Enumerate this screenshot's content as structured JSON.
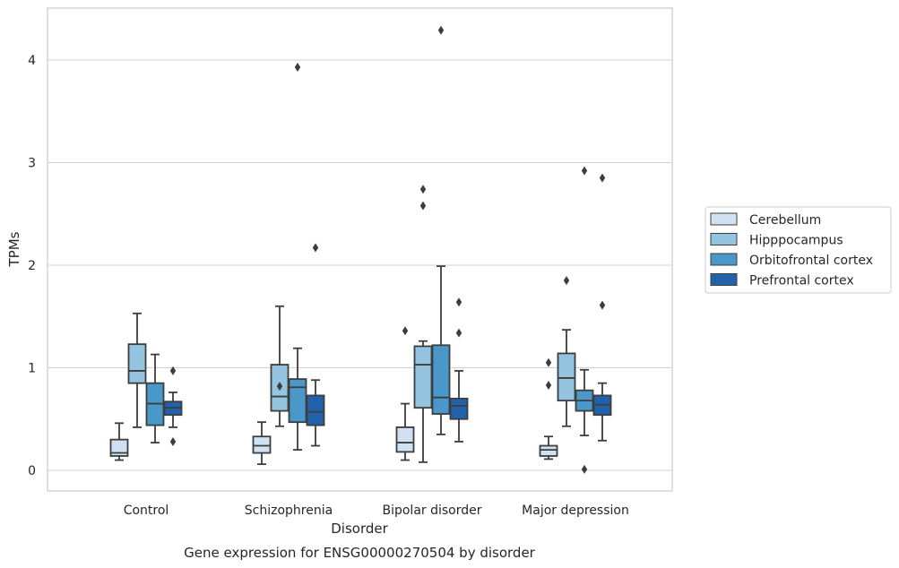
{
  "chart_data": {
    "type": "box",
    "title": "",
    "caption": "Gene expression for ENSG00000270504 by disorder",
    "xlabel": "Disorder",
    "ylabel": "TPMs",
    "categories": [
      "Control",
      "Schizophrenia",
      "Bipolar disorder",
      "Major depression"
    ],
    "y_ticks": [
      0,
      1,
      2,
      3,
      4
    ],
    "ylim": [
      -0.2,
      4.5
    ],
    "grid": "horizontal",
    "legend_position": "right",
    "series": [
      {
        "name": "Cerebellum",
        "color": "#d0e1f2",
        "boxes": [
          {
            "whisker_low": 0.1,
            "q1": 0.14,
            "median": 0.17,
            "q3": 0.3,
            "whisker_high": 0.46,
            "outliers": []
          },
          {
            "whisker_low": 0.06,
            "q1": 0.17,
            "median": 0.24,
            "q3": 0.33,
            "whisker_high": 0.47,
            "outliers": []
          },
          {
            "whisker_low": 0.1,
            "q1": 0.18,
            "median": 0.27,
            "q3": 0.42,
            "whisker_high": 0.65,
            "outliers": [
              1.36
            ]
          },
          {
            "whisker_low": 0.11,
            "q1": 0.14,
            "median": 0.2,
            "q3": 0.24,
            "whisker_high": 0.33,
            "outliers": [
              1.05,
              0.83
            ]
          }
        ]
      },
      {
        "name": "Hipppocampus",
        "color": "#94c4df",
        "boxes": [
          {
            "whisker_low": 0.42,
            "q1": 0.85,
            "median": 0.97,
            "q3": 1.23,
            "whisker_high": 1.53,
            "outliers": []
          },
          {
            "whisker_low": 0.43,
            "q1": 0.58,
            "median": 0.72,
            "q3": 1.03,
            "whisker_high": 1.6,
            "outliers": [
              0.82
            ]
          },
          {
            "whisker_low": 0.08,
            "q1": 0.61,
            "median": 1.03,
            "q3": 1.21,
            "whisker_high": 1.26,
            "outliers": [
              2.74,
              2.58
            ]
          },
          {
            "whisker_low": 0.43,
            "q1": 0.68,
            "median": 0.9,
            "q3": 1.14,
            "whisker_high": 1.37,
            "outliers": [
              1.85
            ]
          }
        ]
      },
      {
        "name": "Orbitofrontal cortex",
        "color": "#4a98c9",
        "boxes": [
          {
            "whisker_low": 0.27,
            "q1": 0.44,
            "median": 0.65,
            "q3": 0.85,
            "whisker_high": 1.13,
            "outliers": []
          },
          {
            "whisker_low": 0.2,
            "q1": 0.47,
            "median": 0.81,
            "q3": 0.89,
            "whisker_high": 1.19,
            "outliers": [
              3.93
            ]
          },
          {
            "whisker_low": 0.35,
            "q1": 0.55,
            "median": 0.71,
            "q3": 1.22,
            "whisker_high": 1.99,
            "outliers": [
              4.29
            ]
          },
          {
            "whisker_low": 0.34,
            "q1": 0.58,
            "median": 0.68,
            "q3": 0.78,
            "whisker_high": 0.98,
            "outliers": [
              2.92,
              0.01
            ]
          }
        ]
      },
      {
        "name": "Prefrontal cortex",
        "color": "#2163aa",
        "boxes": [
          {
            "whisker_low": 0.42,
            "q1": 0.54,
            "median": 0.61,
            "q3": 0.67,
            "whisker_high": 0.76,
            "outliers": [
              0.97,
              0.28
            ]
          },
          {
            "whisker_low": 0.24,
            "q1": 0.44,
            "median": 0.57,
            "q3": 0.73,
            "whisker_high": 0.88,
            "outliers": [
              2.17
            ]
          },
          {
            "whisker_low": 0.28,
            "q1": 0.5,
            "median": 0.63,
            "q3": 0.7,
            "whisker_high": 0.97,
            "outliers": [
              1.64,
              1.34
            ]
          },
          {
            "whisker_low": 0.29,
            "q1": 0.54,
            "median": 0.64,
            "q3": 0.73,
            "whisker_high": 0.85,
            "outliers": [
              2.85,
              1.61
            ]
          }
        ]
      }
    ]
  }
}
